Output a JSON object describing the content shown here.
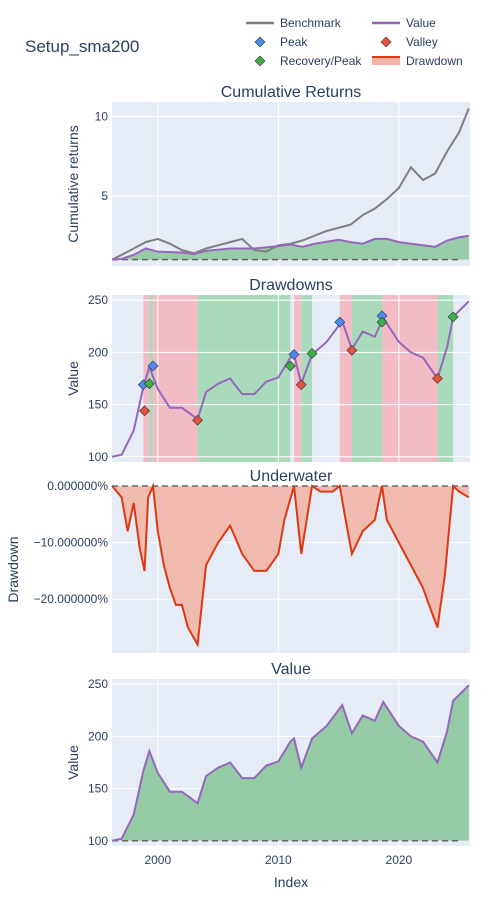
{
  "page_title": "Setup_sma200",
  "x_axis_label": "Index",
  "x_ticks": [
    2000,
    2010,
    2020
  ],
  "legend": {
    "items": [
      {
        "label": "Benchmark",
        "kind": "line",
        "color": "#7f7f7f"
      },
      {
        "label": "Value",
        "kind": "line",
        "color": "#9467bd"
      },
      {
        "label": "Peak",
        "kind": "marker",
        "color": "#1f77b4"
      },
      {
        "label": "Valley",
        "kind": "marker",
        "color": "#d62728"
      },
      {
        "label": "Recovery/Peak",
        "kind": "marker",
        "color": "#2ca02c"
      },
      {
        "label": "Drawdown",
        "kind": "band",
        "color": "#e6431f"
      }
    ]
  },
  "colors": {
    "plot_bg": "#e5ecf6",
    "grid": "#ffffff",
    "benchmark": "#7f7f7f",
    "value": "#9467bd",
    "peak": "#4c8bf5",
    "valley": "#e45141",
    "recovery": "#3fae49",
    "underwater_line": "#dc3912",
    "underwater_fill": "#f2b6a8",
    "green_fill": "#8fc9a0",
    "red_span": "#f2b8c2",
    "green_span": "#a7d9b8"
  },
  "chart_data": [
    {
      "type": "line",
      "title": "Cumulative Returns",
      "ylabel": "Cumulative returns",
      "ylim": [
        0.6,
        10.9
      ],
      "yticks": [
        5,
        10
      ],
      "xlim": [
        1996.2,
        2025.9
      ],
      "series": [
        {
          "name": "Benchmark",
          "x": [
            1996.2,
            1997,
            1998,
            1999,
            2000,
            2001,
            2002,
            2003,
            2004,
            2005,
            2006,
            2007,
            2008,
            2009,
            2010,
            2011,
            2012,
            2013,
            2014,
            2015,
            2016,
            2017,
            2018,
            2019,
            2020,
            2021,
            2022,
            2023,
            2024,
            2025,
            2025.8
          ],
          "y": [
            1.0,
            1.3,
            1.7,
            2.1,
            2.3,
            2.0,
            1.6,
            1.4,
            1.7,
            1.9,
            2.1,
            2.3,
            1.6,
            1.5,
            1.9,
            2.0,
            2.2,
            2.5,
            2.8,
            3.0,
            3.2,
            3.8,
            4.2,
            4.8,
            5.5,
            6.8,
            6.0,
            6.4,
            7.8,
            9.0,
            10.5
          ]
        },
        {
          "name": "Value",
          "x": [
            1996.2,
            1997,
            1998,
            1999,
            2000,
            2002,
            2003,
            2004,
            2006,
            2008,
            2010,
            2011,
            2012,
            2013,
            2015,
            2016,
            2017,
            2018,
            2019,
            2020,
            2021,
            2022,
            2023,
            2024,
            2025,
            2025.8
          ],
          "y": [
            1.0,
            1.05,
            1.3,
            1.7,
            1.5,
            1.45,
            1.35,
            1.55,
            1.7,
            1.7,
            1.85,
            1.95,
            1.8,
            2.0,
            2.25,
            2.1,
            2.0,
            2.3,
            2.3,
            2.1,
            2.0,
            1.9,
            1.8,
            2.2,
            2.4,
            2.5
          ]
        }
      ]
    },
    {
      "type": "line",
      "title": "Drawdowns",
      "ylabel": "Value",
      "ylim": [
        95,
        255
      ],
      "yticks": [
        100,
        150,
        200,
        250
      ],
      "xlim": [
        1996.2,
        2025.9
      ],
      "series": [
        {
          "name": "Value",
          "x": [
            1996.2,
            1997,
            1998,
            1998.8,
            1999.3,
            2000,
            2001,
            2002,
            2003.3,
            2004,
            2005,
            2006,
            2007,
            2008,
            2009,
            2010,
            2011,
            2011.3,
            2011.9,
            2012.8,
            2014,
            2015.3,
            2016.1,
            2017,
            2018,
            2018.7,
            2020,
            2021,
            2022,
            2023.2,
            2024,
            2024.5,
            2025.8
          ],
          "y": [
            100,
            102,
            125,
            167,
            186,
            165,
            147,
            147,
            136,
            162,
            170,
            175,
            160,
            160,
            172,
            176,
            195,
            198,
            170,
            198,
            210,
            230,
            203,
            220,
            215,
            233,
            210,
            200,
            195,
            175,
            205,
            234,
            249
          ]
        }
      ],
      "peaks": [
        {
          "x": 1998.8,
          "y": 169
        },
        {
          "x": 1999.6,
          "y": 187
        },
        {
          "x": 2011.3,
          "y": 198
        },
        {
          "x": 2015.1,
          "y": 229
        },
        {
          "x": 2018.6,
          "y": 235
        }
      ],
      "valleys": [
        {
          "x": 1998.9,
          "y": 144
        },
        {
          "x": 2003.3,
          "y": 135
        },
        {
          "x": 2011.9,
          "y": 169
        },
        {
          "x": 2016.1,
          "y": 202
        },
        {
          "x": 2023.2,
          "y": 175
        }
      ],
      "recoveries": [
        {
          "x": 1999.3,
          "y": 170
        },
        {
          "x": 2011.0,
          "y": 187
        },
        {
          "x": 2012.8,
          "y": 199
        },
        {
          "x": 2018.6,
          "y": 229
        },
        {
          "x": 2024.5,
          "y": 234
        }
      ],
      "spans": [
        {
          "kind": "red",
          "x0": 1998.8,
          "x1": 1999.3
        },
        {
          "kind": "green",
          "x0": 1999.3,
          "x1": 1999.6
        },
        {
          "kind": "red",
          "x0": 1999.6,
          "x1": 2003.3
        },
        {
          "kind": "green",
          "x0": 2003.3,
          "x1": 2011.0
        },
        {
          "kind": "red",
          "x0": 2011.3,
          "x1": 2011.9
        },
        {
          "kind": "green",
          "x0": 2011.9,
          "x1": 2012.8
        },
        {
          "kind": "red",
          "x0": 2015.1,
          "x1": 2016.1
        },
        {
          "kind": "green",
          "x0": 2016.1,
          "x1": 2018.6
        },
        {
          "kind": "red",
          "x0": 2018.6,
          "x1": 2023.2
        },
        {
          "kind": "green",
          "x0": 2023.2,
          "x1": 2024.5
        }
      ]
    },
    {
      "type": "area",
      "title": "Underwater",
      "ylabel": "Drawdown",
      "ylim": [
        -0.295,
        0.0
      ],
      "yticks": [
        0,
        -0.1,
        -0.2
      ],
      "ytick_labels": [
        "0.000000%",
        "−10.000000%",
        "−20.000000%"
      ],
      "xlim": [
        1996.2,
        2025.9
      ],
      "series": [
        {
          "name": "Drawdown",
          "x": [
            1996.2,
            1997,
            1997.5,
            1998,
            1998.5,
            1998.9,
            1999.2,
            1999.6,
            2000,
            2000.5,
            2001,
            2001.5,
            2002,
            2002.5,
            2003.3,
            2004,
            2005,
            2006,
            2007,
            2008,
            2009,
            2010,
            2010.5,
            2011.3,
            2011.9,
            2012.8,
            2013.5,
            2014.5,
            2015.1,
            2015.5,
            2016.1,
            2017,
            2018,
            2018.6,
            2019,
            2020,
            2021,
            2022,
            2022.5,
            2023.2,
            2023.8,
            2024.5,
            2025,
            2025.8
          ],
          "y": [
            0,
            -0.02,
            -0.08,
            -0.03,
            -0.11,
            -0.15,
            -0.02,
            0,
            -0.08,
            -0.14,
            -0.18,
            -0.21,
            -0.21,
            -0.25,
            -0.28,
            -0.14,
            -0.1,
            -0.07,
            -0.12,
            -0.15,
            -0.15,
            -0.12,
            -0.06,
            0,
            -0.12,
            0,
            -0.01,
            -0.01,
            0,
            -0.05,
            -0.12,
            -0.08,
            -0.06,
            0,
            -0.06,
            -0.1,
            -0.14,
            -0.18,
            -0.21,
            -0.25,
            -0.16,
            0,
            -0.01,
            -0.02
          ]
        }
      ]
    },
    {
      "type": "area",
      "title": "Value",
      "ylabel": "Value",
      "ylim": [
        95,
        255
      ],
      "yticks": [
        100,
        150,
        200,
        250
      ],
      "xlim": [
        1996.2,
        2025.9
      ],
      "series": [
        {
          "name": "Value",
          "x": [
            1996.2,
            1997,
            1998,
            1998.8,
            1999.3,
            2000,
            2001,
            2002,
            2003.3,
            2004,
            2005,
            2006,
            2007,
            2008,
            2009,
            2010,
            2011,
            2011.3,
            2011.9,
            2012.8,
            2014,
            2015.3,
            2016.1,
            2017,
            2018,
            2018.7,
            2020,
            2021,
            2022,
            2023.2,
            2024,
            2024.5,
            2025.8
          ],
          "y": [
            100,
            102,
            125,
            167,
            186,
            165,
            147,
            147,
            136,
            162,
            170,
            175,
            160,
            160,
            172,
            176,
            195,
            198,
            170,
            198,
            210,
            230,
            203,
            220,
            215,
            233,
            210,
            200,
            195,
            175,
            205,
            234,
            249
          ]
        }
      ]
    }
  ]
}
